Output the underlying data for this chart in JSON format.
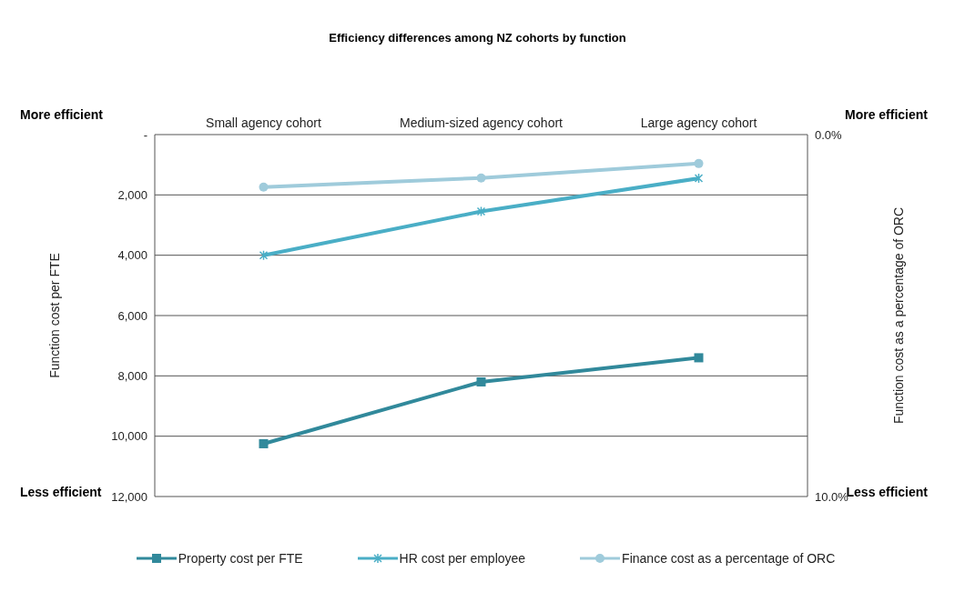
{
  "chart_data": {
    "type": "line",
    "title": "Efficiency differences among NZ cohorts by function",
    "categories": [
      "Small agency  cohort",
      "Medium-sized agency cohort",
      "Large agency cohort"
    ],
    "ylabel": "Function cost per FTE",
    "y2label": "Function cost as a percentage of ORC",
    "ylim": [
      12000,
      0
    ],
    "yticks": [
      {
        "value": 0,
        "label": "-"
      },
      {
        "value": 2000,
        "label": "2,000"
      },
      {
        "value": 4000,
        "label": "4,000"
      },
      {
        "value": 6000,
        "label": "6,000"
      },
      {
        "value": 8000,
        "label": "8,000"
      },
      {
        "value": 10000,
        "label": "10,000"
      },
      {
        "value": 12000,
        "label": "12,000"
      }
    ],
    "y2lim": [
      10,
      0
    ],
    "y2ticks": [
      {
        "value": 0,
        "label": "0.0%"
      },
      {
        "value": 10,
        "label": "10.0%"
      }
    ],
    "series": [
      {
        "name": "Property cost per FTE",
        "color": "#31899b",
        "marker": "square",
        "values": [
          10250,
          8200,
          7400
        ]
      },
      {
        "name": "HR cost per employee",
        "color": "#4aaec6",
        "marker": "cross",
        "values": [
          4000,
          2550,
          1450
        ]
      },
      {
        "name": "Finance cost as a percentage of ORC",
        "color": "#9fcbdb",
        "marker": "circle",
        "axis": "y2",
        "values": [
          1.45,
          1.2,
          0.8
        ]
      }
    ],
    "annotations": [
      "More efficient",
      "More efficient",
      "Less efficient",
      "Less efficient"
    ],
    "grid": "y",
    "legend": "bottom",
    "line_style": "solid"
  }
}
